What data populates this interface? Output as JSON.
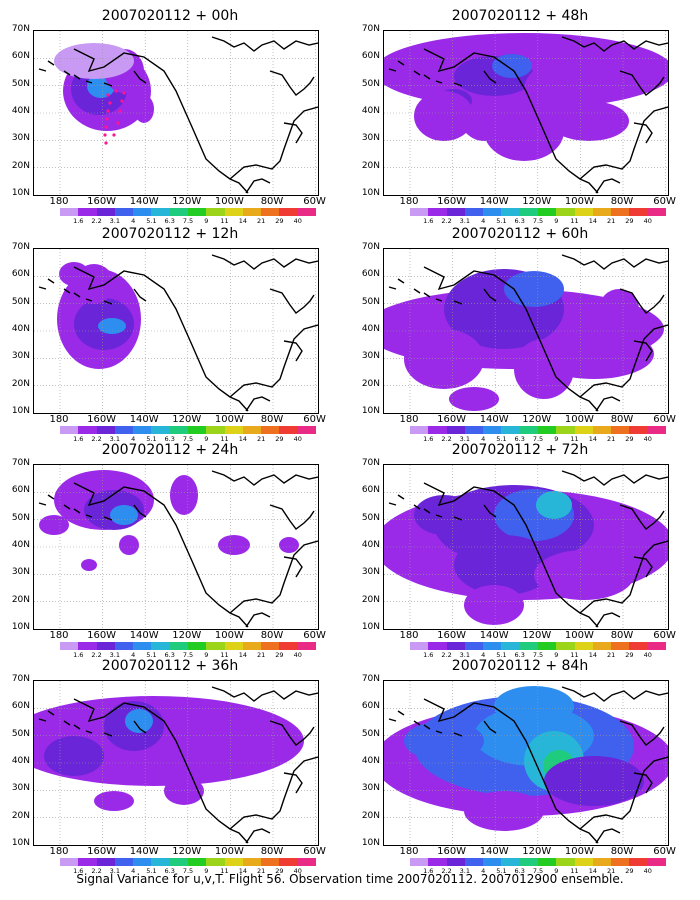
{
  "caption": "Signal Variance for u,v,T. Flight 56. Observation time 2007020112. 2007012900 ensemble.",
  "latitude_labels": [
    "70N",
    "60N",
    "50N",
    "40N",
    "30N",
    "20N",
    "10N"
  ],
  "longitude_labels": [
    "180",
    "160W",
    "140W",
    "120W",
    "100W",
    "80W",
    "60W"
  ],
  "colorbar": {
    "labels": [
      "1.6",
      "2.2",
      "3.1",
      "4",
      "5.1",
      "6.3",
      "7.5",
      "9",
      "11",
      "14",
      "21",
      "29",
      "40"
    ],
    "colors": [
      "#c89af4",
      "#9a2ae8",
      "#6a25d8",
      "#4060ee",
      "#2e8ef0",
      "#27b6d8",
      "#1fcc7d",
      "#22cc22",
      "#9cd41a",
      "#ddd218",
      "#e8a91a",
      "#ee7120",
      "#f03a34",
      "#ea2b86"
    ]
  },
  "panels": [
    {
      "title": "2007020112 + 00h"
    },
    {
      "title": "2007020112 + 48h"
    },
    {
      "title": "2007020112 + 12h"
    },
    {
      "title": "2007020112 + 60h"
    },
    {
      "title": "2007020112 + 24h"
    },
    {
      "title": "2007020112 + 72h"
    },
    {
      "title": "2007020112 + 36h"
    },
    {
      "title": "2007020112 + 84h"
    }
  ]
}
